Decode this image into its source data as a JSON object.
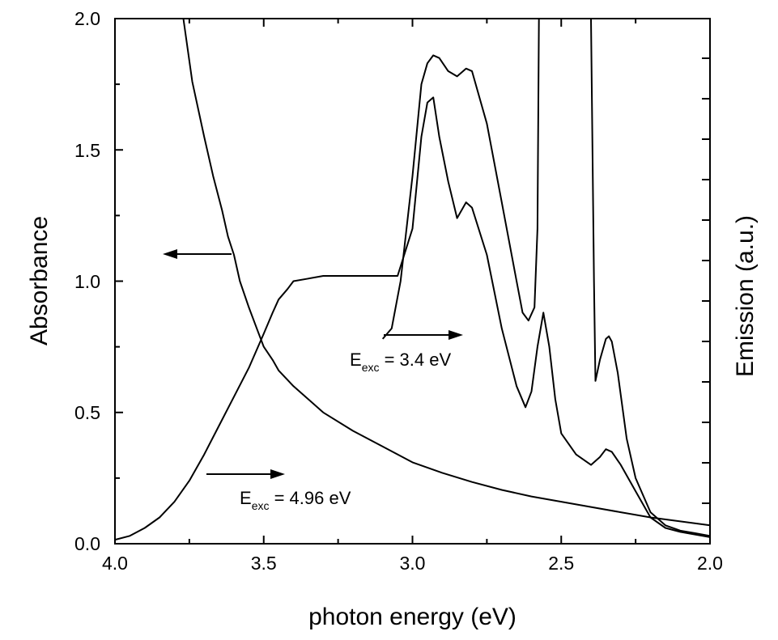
{
  "chart_data": {
    "type": "line",
    "xlabel": "photon energy (eV)",
    "ylabel": "Absorbance",
    "y2label": "Emission (a.u.)",
    "xlim": [
      4.0,
      2.0
    ],
    "ylim": [
      0.0,
      2.0
    ],
    "x_ticks": [
      "4.0",
      "3.5",
      "3.0",
      "2.5",
      "2.0"
    ],
    "y_ticks": [
      "0.0",
      "0.5",
      "1.0",
      "1.5",
      "2.0"
    ],
    "annotations": [
      {
        "main": "E",
        "sub": "exc",
        "rest": " = 3.4 eV"
      },
      {
        "main": "E",
        "sub": "exc",
        "rest": " = 4.96 eV"
      }
    ],
    "series": [
      {
        "axis": "left",
        "x": [
          3.77,
          3.74,
          3.7,
          3.67,
          3.64,
          3.62,
          3.6,
          3.58,
          3.55,
          3.52,
          3.5,
          3.47,
          3.45,
          3.4,
          3.35,
          3.3,
          3.2,
          3.1,
          3.0,
          2.9,
          2.8,
          2.7,
          2.6,
          2.5,
          2.4,
          2.3,
          2.2,
          2.1,
          2.0
        ],
        "values": [
          2.0,
          1.76,
          1.55,
          1.4,
          1.27,
          1.17,
          1.1,
          1.0,
          0.9,
          0.81,
          0.75,
          0.7,
          0.66,
          0.6,
          0.55,
          0.5,
          0.43,
          0.37,
          0.31,
          0.27,
          0.235,
          0.205,
          0.18,
          0.16,
          0.14,
          0.12,
          0.1,
          0.085,
          0.07
        ]
      },
      {
        "axis": "right",
        "x": [
          4.0,
          3.95,
          3.9,
          3.85,
          3.8,
          3.75,
          3.7,
          3.65,
          3.6,
          3.55,
          3.5,
          3.47,
          3.45,
          3.42,
          3.4,
          3.35,
          3.3,
          3.2,
          3.1,
          3.05,
          3.0,
          2.97,
          2.95,
          2.93,
          2.91,
          2.88,
          2.85,
          2.82,
          2.8,
          2.75,
          2.7,
          2.65,
          2.62,
          2.6,
          2.58,
          2.56,
          2.54,
          2.52,
          2.5,
          2.45,
          2.4,
          2.37,
          2.35,
          2.33,
          2.3,
          2.25,
          2.2,
          2.15,
          2.1,
          2.05,
          2.0
        ],
        "values": [
          0.015,
          0.03,
          0.06,
          0.1,
          0.16,
          0.24,
          0.34,
          0.45,
          0.56,
          0.67,
          0.8,
          0.88,
          0.93,
          0.97,
          1.0,
          1.01,
          1.02,
          1.02,
          1.02,
          1.02,
          1.2,
          1.55,
          1.68,
          1.7,
          1.55,
          1.38,
          1.24,
          1.3,
          1.28,
          1.1,
          0.82,
          0.6,
          0.52,
          0.58,
          0.75,
          0.88,
          0.75,
          0.55,
          0.42,
          0.34,
          0.3,
          0.33,
          0.36,
          0.35,
          0.3,
          0.2,
          0.1,
          0.06,
          0.045,
          0.035,
          0.025
        ]
      },
      {
        "axis": "right",
        "x": [
          3.1,
          3.07,
          3.04,
          3.0,
          2.97,
          2.95,
          2.93,
          2.91,
          2.88,
          2.85,
          2.82,
          2.8,
          2.75,
          2.7,
          2.65,
          2.63,
          2.61,
          2.59,
          2.58,
          2.575,
          2.4,
          2.39,
          2.385,
          2.37,
          2.35,
          2.34,
          2.33,
          2.31,
          2.28,
          2.25,
          2.2,
          2.15,
          2.1,
          2.05,
          2.0
        ],
        "values": [
          0.78,
          0.82,
          1.0,
          1.4,
          1.75,
          1.83,
          1.86,
          1.85,
          1.8,
          1.78,
          1.81,
          1.8,
          1.6,
          1.3,
          1.0,
          0.88,
          0.85,
          0.9,
          1.2,
          2.0,
          2.0,
          1.0,
          0.62,
          0.7,
          0.78,
          0.79,
          0.77,
          0.65,
          0.4,
          0.25,
          0.12,
          0.07,
          0.05,
          0.04,
          0.03
        ]
      }
    ]
  }
}
